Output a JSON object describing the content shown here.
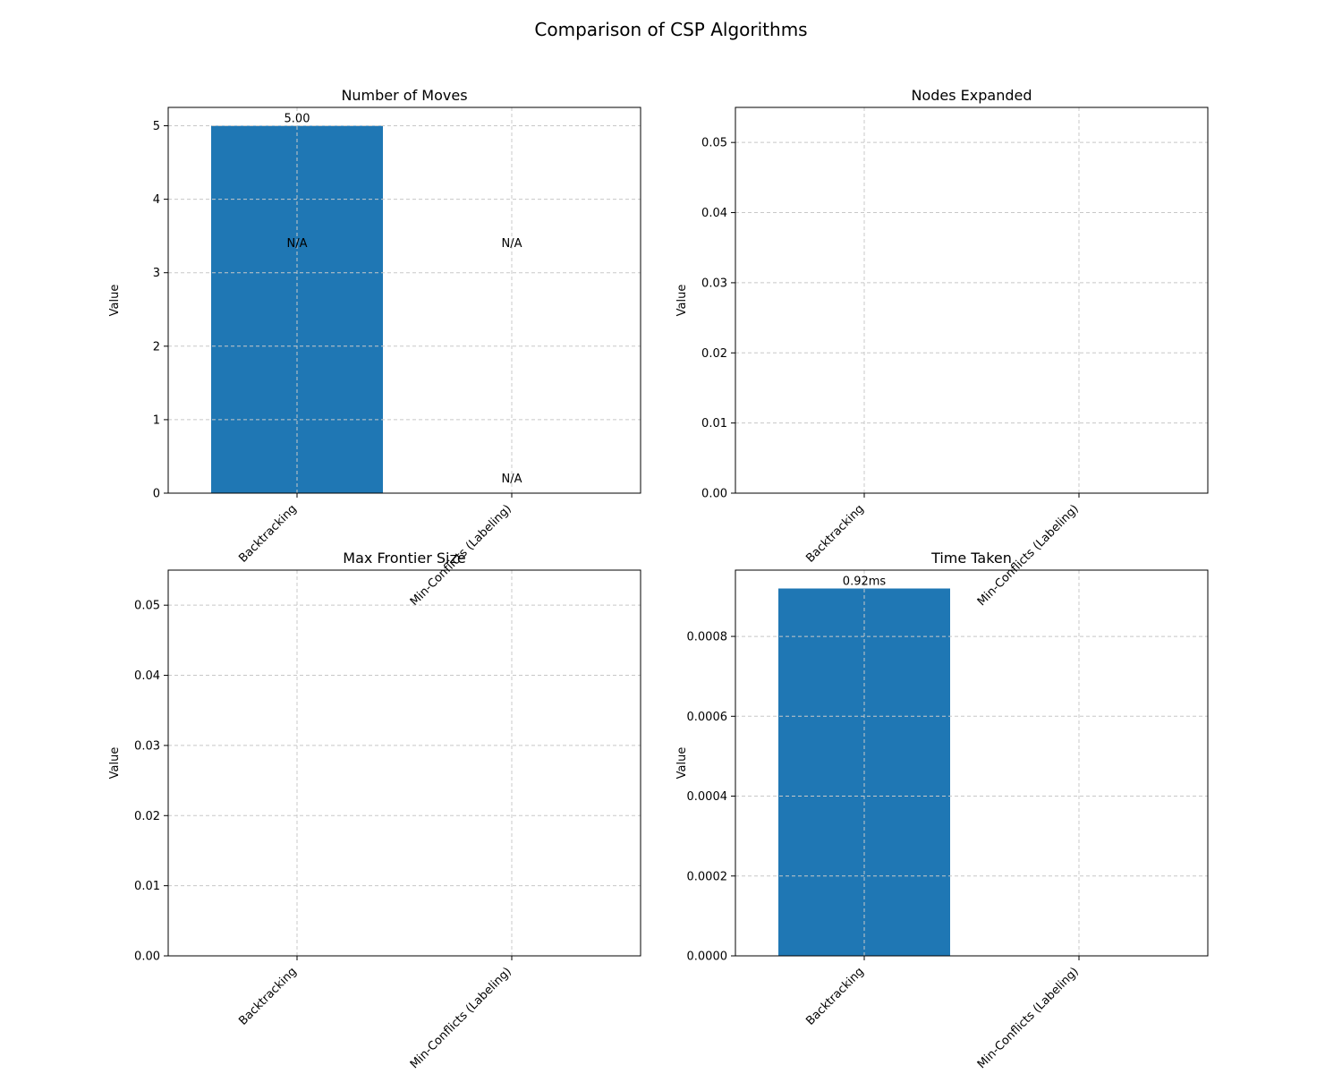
{
  "figure": {
    "suptitle": "Comparison of CSP Algorithms",
    "bar_color": "#1f77b4",
    "grid_color": "#c8c8c8"
  },
  "chart_data": [
    {
      "type": "bar",
      "title": "Number of Moves",
      "ylabel": "Value",
      "categories": [
        "Backtracking",
        "Min-Conflicts (Labeling)"
      ],
      "values": [
        5,
        0
      ],
      "ylim": [
        0,
        5.25
      ],
      "yticks": [
        "0",
        "1",
        "2",
        "3",
        "4",
        "5"
      ],
      "grid": true,
      "bar_labels": [
        {
          "text": "5.00",
          "x": "Backtracking",
          "y": 5
        },
        {
          "text": "N/A",
          "x": "Backtracking",
          "y": 3.3
        },
        {
          "text": "N/A",
          "x": "Min-Conflicts (Labeling)",
          "y": 3.3
        },
        {
          "text": "N/A",
          "x": "Min-Conflicts (Labeling)",
          "y": 0.1
        }
      ]
    },
    {
      "type": "bar",
      "title": "Nodes Expanded",
      "ylabel": "Value",
      "categories": [
        "Backtracking",
        "Min-Conflicts (Labeling)"
      ],
      "values": [
        0,
        0
      ],
      "ylim": [
        0,
        0.055
      ],
      "yticks": [
        "0.00",
        "0.01",
        "0.02",
        "0.03",
        "0.04",
        "0.05"
      ],
      "grid": true,
      "bar_labels": []
    },
    {
      "type": "bar",
      "title": "Max Frontier Size",
      "ylabel": "Value",
      "categories": [
        "Backtracking",
        "Min-Conflicts (Labeling)"
      ],
      "values": [
        0,
        0
      ],
      "ylim": [
        0,
        0.055
      ],
      "yticks": [
        "0.00",
        "0.01",
        "0.02",
        "0.03",
        "0.04",
        "0.05"
      ],
      "grid": true,
      "bar_labels": []
    },
    {
      "type": "bar",
      "title": "Time Taken",
      "ylabel": "Value",
      "categories": [
        "Backtracking",
        "Min-Conflicts (Labeling)"
      ],
      "values": [
        0.00092,
        0
      ],
      "ylim": [
        0,
        0.000966
      ],
      "yticks": [
        "0.0000",
        "0.0002",
        "0.0004",
        "0.0006",
        "0.0008"
      ],
      "grid": true,
      "bar_labels": [
        {
          "text": "0.92ms",
          "x": "Backtracking",
          "y": 0.00092
        }
      ]
    }
  ]
}
